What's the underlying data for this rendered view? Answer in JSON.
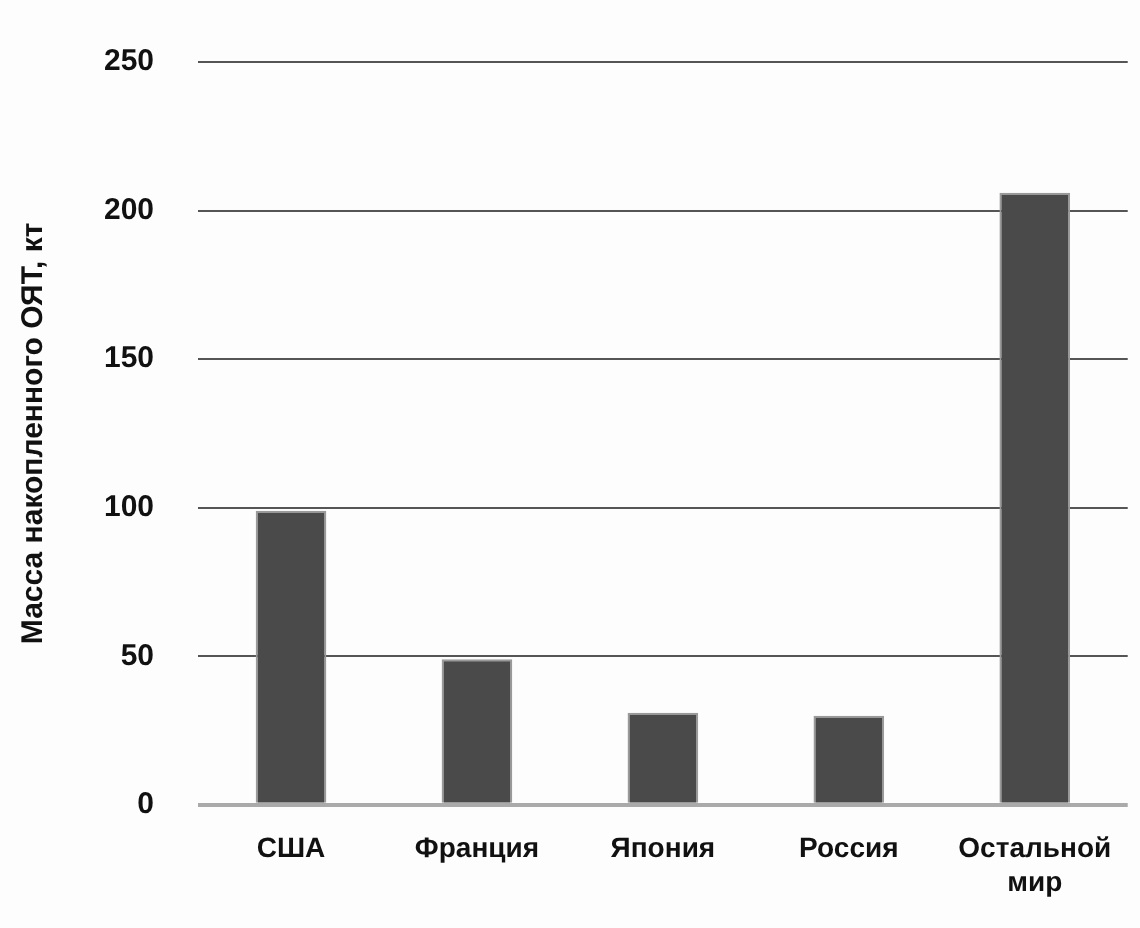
{
  "chart_data": {
    "type": "bar",
    "ylabel": "Масса накопленного ОЯТ, кт",
    "categories": [
      "США",
      "Франция",
      "Япония",
      "Россия",
      "Остальной мир"
    ],
    "values": [
      99,
      49,
      31,
      30,
      206
    ],
    "color": "#4a4a4a",
    "ylim": [
      0,
      250
    ],
    "yticks": [
      0,
      50,
      100,
      150,
      200,
      250
    ],
    "grid": "y"
  }
}
